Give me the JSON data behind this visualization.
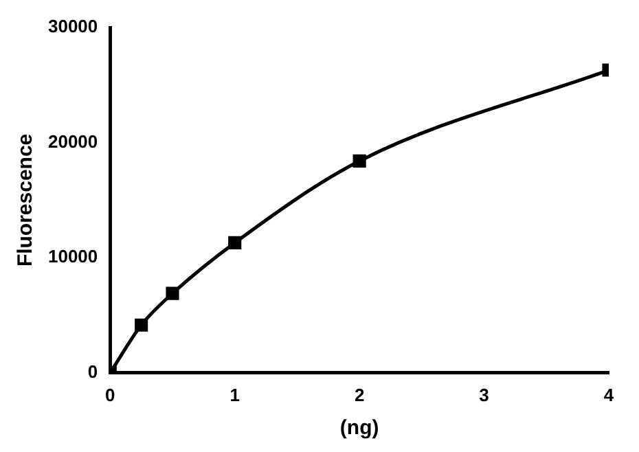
{
  "chart_data": {
    "type": "line",
    "xlabel": "(ng)",
    "ylabel": "Fluorescence",
    "x": [
      0,
      0.25,
      0.5,
      1,
      2,
      4
    ],
    "series": [
      {
        "color": "#000000",
        "values": [
          0,
          4150,
          6900,
          11300,
          18400,
          26300
        ]
      }
    ],
    "xlim": [
      0,
      4
    ],
    "xticks": [
      0,
      1,
      2,
      3,
      4
    ],
    "ylim": [
      0,
      30000
    ],
    "yticks": [
      0,
      10000,
      20000,
      30000
    ],
    "marker": "square",
    "line_style": "solid",
    "grid": false,
    "legend": false
  }
}
